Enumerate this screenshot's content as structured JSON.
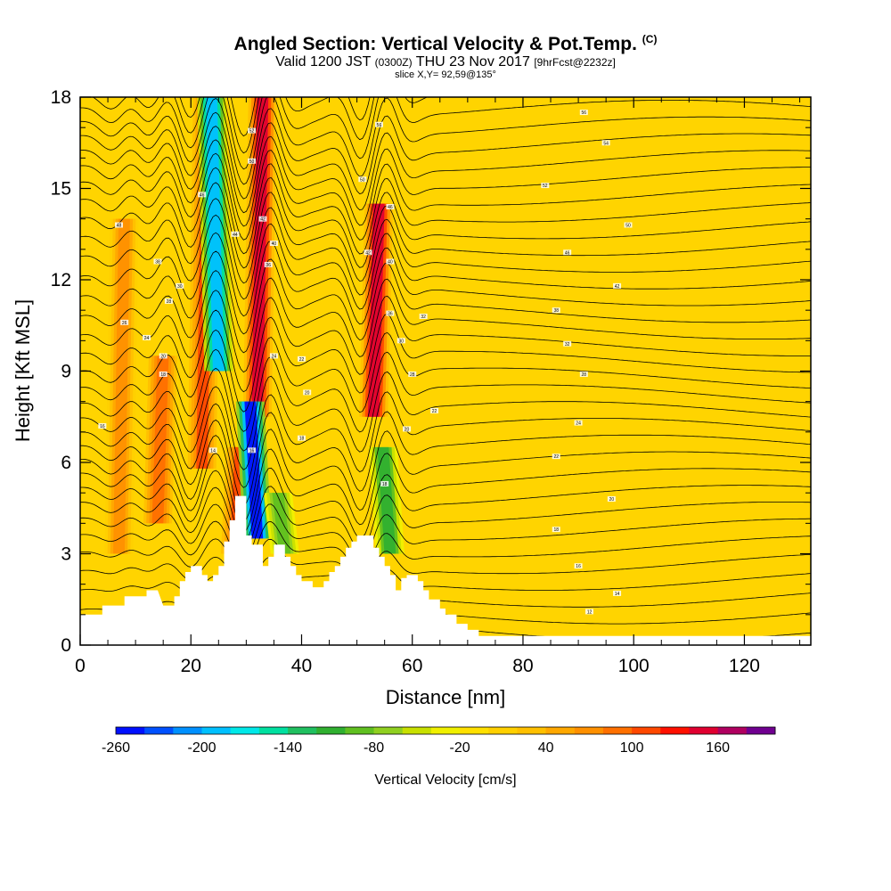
{
  "header": {
    "title": "Angled Section: Vertical Velocity & Pot.Temp.",
    "title_tag": "(C)",
    "valid_prefix": "Valid 1200 JST",
    "valid_zulu": "(0300Z)",
    "valid_date": "THU 23 Nov 2017",
    "forecast_tag": "[9hrFcst@2232z]",
    "slice_info": "slice X,Y= 92,59@135°"
  },
  "chart_data": {
    "type": "heatmap",
    "xlabel": "Distance [nm]",
    "ylabel": "Height [Kft MSL]",
    "xlim": [
      0,
      132
    ],
    "ylim": [
      0,
      18
    ],
    "x_ticks": [
      0,
      20,
      40,
      60,
      80,
      100,
      120
    ],
    "y_ticks": [
      0,
      3,
      6,
      9,
      12,
      15,
      18
    ],
    "grid": false,
    "colorbar": {
      "title": "Vertical Velocity [cm/s]",
      "placement": "bottom",
      "levels": [
        -260,
        -240,
        -220,
        -200,
        -180,
        -160,
        -140,
        -120,
        -100,
        -80,
        -60,
        -40,
        -20,
        0,
        20,
        40,
        60,
        80,
        100,
        120,
        140,
        160,
        180
      ],
      "tick_labels": [
        -260,
        -200,
        -140,
        -80,
        -20,
        40,
        100,
        160
      ],
      "colors": [
        "#0010ff",
        "#0050ff",
        "#0090ff",
        "#00c0ff",
        "#00e8e8",
        "#00e0a0",
        "#20c060",
        "#30b030",
        "#60c020",
        "#90d020",
        "#c8e000",
        "#f0f000",
        "#ffe000",
        "#ffd000",
        "#ffc000",
        "#ffa800",
        "#ff9000",
        "#ff7000",
        "#ff4800",
        "#ff1000",
        "#e00030",
        "#b00060",
        "#700090"
      ]
    },
    "updraft_features": [
      {
        "x": 22,
        "y_range": [
          5.8,
          18
        ],
        "w": 100
      },
      {
        "x": 32,
        "y_range": [
          7.5,
          18
        ],
        "w": 150
      },
      {
        "x": 53,
        "y_range": [
          7.5,
          14.5
        ],
        "w": 150
      },
      {
        "x": 28,
        "y_range": [
          3,
          6.5
        ],
        "w": 100
      },
      {
        "x": 14,
        "y_range": [
          4,
          9.5
        ],
        "w": 80
      },
      {
        "x": 7,
        "y_range": [
          3,
          14
        ],
        "w": 60
      }
    ],
    "downdraft_features": [
      {
        "x": 25,
        "y_range": [
          9,
          18
        ],
        "w": -200
      },
      {
        "x": 32,
        "y_range": [
          3.5,
          8
        ],
        "w": -260
      },
      {
        "x": 56,
        "y_range": [
          3,
          6.5
        ],
        "w": -120
      },
      {
        "x": 37,
        "y_range": [
          3,
          5
        ],
        "w": -100
      }
    ],
    "terrain_profile_kft": [
      [
        0,
        1.0
      ],
      [
        4,
        1.0
      ],
      [
        4,
        1.3
      ],
      [
        8,
        1.3
      ],
      [
        8,
        1.6
      ],
      [
        12,
        1.6
      ],
      [
        12,
        1.8
      ],
      [
        14,
        1.8
      ],
      [
        15,
        1.3
      ],
      [
        17,
        1.3
      ],
      [
        17,
        1.6
      ],
      [
        18,
        1.6
      ],
      [
        18,
        2.1
      ],
      [
        19,
        2.1
      ],
      [
        19,
        2.4
      ],
      [
        20,
        2.4
      ],
      [
        20,
        2.6
      ],
      [
        22,
        2.6
      ],
      [
        22,
        2.3
      ],
      [
        23,
        2.3
      ],
      [
        23,
        2.1
      ],
      [
        24,
        2.1
      ],
      [
        24,
        2.3
      ],
      [
        25,
        2.3
      ],
      [
        25,
        2.6
      ],
      [
        26,
        2.6
      ],
      [
        26,
        3.4
      ],
      [
        27,
        3.4
      ],
      [
        27,
        4.1
      ],
      [
        28,
        4.1
      ],
      [
        28,
        4.9
      ],
      [
        30,
        4.9
      ],
      [
        30,
        3.6
      ],
      [
        31,
        3.6
      ],
      [
        31,
        3.3
      ],
      [
        33,
        3.3
      ],
      [
        33,
        2.6
      ],
      [
        34,
        2.6
      ],
      [
        34,
        2.9
      ],
      [
        35,
        2.9
      ],
      [
        35,
        3.3
      ],
      [
        37,
        3.3
      ],
      [
        37,
        2.9
      ],
      [
        38,
        2.9
      ],
      [
        38,
        2.6
      ],
      [
        39,
        2.6
      ],
      [
        39,
        2.3
      ],
      [
        40,
        2.3
      ],
      [
        40,
        2.1
      ],
      [
        42,
        2.1
      ],
      [
        42,
        1.9
      ],
      [
        44,
        1.9
      ],
      [
        44,
        2.1
      ],
      [
        45,
        2.1
      ],
      [
        45,
        2.4
      ],
      [
        46,
        2.4
      ],
      [
        46,
        2.6
      ],
      [
        47,
        2.6
      ],
      [
        47,
        2.9
      ],
      [
        48,
        2.9
      ],
      [
        48,
        3.2
      ],
      [
        49,
        3.2
      ],
      [
        49,
        3.4
      ],
      [
        50,
        3.4
      ],
      [
        50,
        3.6
      ],
      [
        53,
        3.6
      ],
      [
        53,
        3.2
      ],
      [
        54,
        3.2
      ],
      [
        54,
        2.9
      ],
      [
        55,
        2.9
      ],
      [
        55,
        2.6
      ],
      [
        56,
        2.6
      ],
      [
        56,
        2.3
      ],
      [
        57,
        2.3
      ],
      [
        57,
        1.8
      ],
      [
        58,
        1.8
      ],
      [
        58,
        2.2
      ],
      [
        59,
        2.2
      ],
      [
        59,
        2.3
      ],
      [
        61,
        2.3
      ],
      [
        61,
        2.1
      ],
      [
        62,
        2.1
      ],
      [
        62,
        1.8
      ],
      [
        63,
        1.8
      ],
      [
        63,
        1.5
      ],
      [
        65,
        1.5
      ],
      [
        65,
        1.2
      ],
      [
        66,
        1.2
      ],
      [
        66,
        1.0
      ],
      [
        68,
        1.0
      ],
      [
        68,
        0.7
      ],
      [
        70,
        0.7
      ],
      [
        70,
        0.5
      ],
      [
        72,
        0.5
      ],
      [
        72,
        0.3
      ],
      [
        132,
        0.3
      ]
    ],
    "contour_labels": [
      {
        "x": 7,
        "y": 13.8,
        "text": "48"
      },
      {
        "x": 14,
        "y": 12.6,
        "text": "38"
      },
      {
        "x": 18,
        "y": 11.8,
        "text": "30"
      },
      {
        "x": 16,
        "y": 11.3,
        "text": "28"
      },
      {
        "x": 8,
        "y": 10.6,
        "text": "26"
      },
      {
        "x": 12,
        "y": 10.1,
        "text": "24"
      },
      {
        "x": 15,
        "y": 9.5,
        "text": "20"
      },
      {
        "x": 15,
        "y": 8.9,
        "text": "18"
      },
      {
        "x": 4,
        "y": 7.2,
        "text": "16"
      },
      {
        "x": 24,
        "y": 6.4,
        "text": "14"
      },
      {
        "x": 22,
        "y": 14.8,
        "text": "46"
      },
      {
        "x": 28,
        "y": 13.5,
        "text": "44"
      },
      {
        "x": 31,
        "y": 16.9,
        "text": "52"
      },
      {
        "x": 31,
        "y": 15.9,
        "text": "50"
      },
      {
        "x": 33,
        "y": 14.0,
        "text": "42"
      },
      {
        "x": 35,
        "y": 13.2,
        "text": "40"
      },
      {
        "x": 34,
        "y": 12.5,
        "text": "36"
      },
      {
        "x": 35,
        "y": 9.5,
        "text": "24"
      },
      {
        "x": 40,
        "y": 9.4,
        "text": "22"
      },
      {
        "x": 41,
        "y": 8.3,
        "text": "20"
      },
      {
        "x": 40,
        "y": 6.8,
        "text": "18"
      },
      {
        "x": 31,
        "y": 6.4,
        "text": "16"
      },
      {
        "x": 54,
        "y": 17.1,
        "text": "56"
      },
      {
        "x": 51,
        "y": 15.3,
        "text": "50"
      },
      {
        "x": 56,
        "y": 14.4,
        "text": "46"
      },
      {
        "x": 52,
        "y": 12.9,
        "text": "42"
      },
      {
        "x": 56,
        "y": 12.6,
        "text": "40"
      },
      {
        "x": 56,
        "y": 10.9,
        "text": "36"
      },
      {
        "x": 62,
        "y": 10.8,
        "text": "32"
      },
      {
        "x": 58,
        "y": 10.0,
        "text": "30"
      },
      {
        "x": 60,
        "y": 8.9,
        "text": "28"
      },
      {
        "x": 64,
        "y": 7.7,
        "text": "22"
      },
      {
        "x": 59,
        "y": 7.1,
        "text": "20"
      },
      {
        "x": 55,
        "y": 5.3,
        "text": "18"
      },
      {
        "x": 91,
        "y": 17.5,
        "text": "56"
      },
      {
        "x": 95,
        "y": 16.5,
        "text": "54"
      },
      {
        "x": 84,
        "y": 15.1,
        "text": "52"
      },
      {
        "x": 99,
        "y": 13.8,
        "text": "50"
      },
      {
        "x": 88,
        "y": 12.9,
        "text": "46"
      },
      {
        "x": 97,
        "y": 11.8,
        "text": "42"
      },
      {
        "x": 86,
        "y": 11.0,
        "text": "38"
      },
      {
        "x": 88,
        "y": 9.9,
        "text": "32"
      },
      {
        "x": 91,
        "y": 8.9,
        "text": "28"
      },
      {
        "x": 90,
        "y": 7.3,
        "text": "24"
      },
      {
        "x": 86,
        "y": 6.2,
        "text": "22"
      },
      {
        "x": 96,
        "y": 4.8,
        "text": "20"
      },
      {
        "x": 86,
        "y": 3.8,
        "text": "18"
      },
      {
        "x": 90,
        "y": 2.6,
        "text": "16"
      },
      {
        "x": 97,
        "y": 1.7,
        "text": "14"
      },
      {
        "x": 92,
        "y": 1.1,
        "text": "12"
      }
    ]
  }
}
